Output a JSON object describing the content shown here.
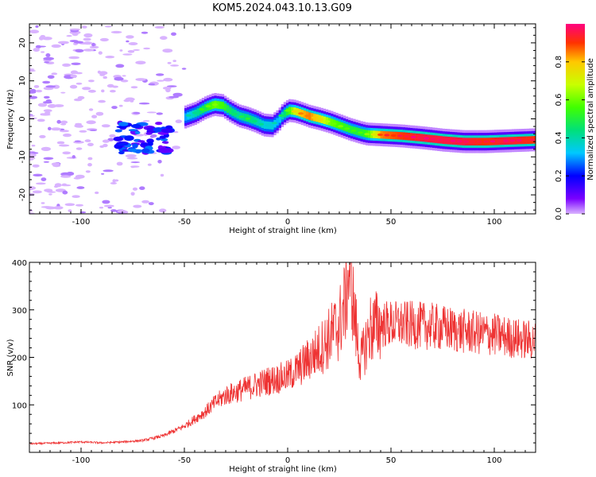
{
  "title": "KOM5.2024.043.10.13.G09",
  "chart_data": [
    {
      "type": "heatmap",
      "xlabel": "Height of straight line (km)",
      "ylabel": "Frequency (Hz)",
      "xlim": [
        -125,
        120
      ],
      "ylim": [
        -25,
        25
      ],
      "x_ticks": [
        -100,
        -50,
        0,
        50,
        100
      ],
      "y_ticks": [
        -20,
        -10,
        0,
        10,
        20
      ],
      "colorbar": {
        "label": "Normalized spectral amplitude",
        "range": [
          0,
          1
        ],
        "ticks": [
          0.0,
          0.2,
          0.4,
          0.6,
          0.8
        ],
        "colors": [
          "#d9b3ff",
          "#7a00ff",
          "#0000ff",
          "#00c8ff",
          "#00e07a",
          "#40ff00",
          "#c8ff00",
          "#ffc800",
          "#ff3300",
          "#ff0080"
        ]
      },
      "ridge": {
        "description_points_x": [
          -50,
          -45,
          -40,
          -36,
          -32,
          -28,
          -24,
          -20,
          -16,
          -12,
          -8,
          -5,
          -3,
          0,
          3,
          6,
          10,
          15,
          20,
          25,
          30,
          35,
          38,
          45,
          55,
          65,
          75,
          85,
          95,
          105,
          120
        ],
        "frequency_hz": [
          0.5,
          1.5,
          3.0,
          3.8,
          3.5,
          2.0,
          0.8,
          0.2,
          -0.6,
          -1.6,
          -1.8,
          -0.5,
          1.0,
          2.2,
          2.0,
          1.5,
          0.7,
          0.0,
          -0.8,
          -1.8,
          -2.8,
          -3.6,
          -4.0,
          -4.2,
          -4.5,
          -5.0,
          -5.6,
          -6.0,
          -6.0,
          -5.8,
          -5.5
        ],
        "amplitude": [
          0.3,
          0.4,
          0.5,
          0.6,
          0.55,
          0.45,
          0.4,
          0.45,
          0.4,
          0.35,
          0.35,
          0.3,
          0.4,
          0.55,
          0.7,
          0.8,
          0.85,
          0.75,
          0.6,
          0.55,
          0.5,
          0.5,
          0.55,
          0.85,
          0.9,
          0.95,
          0.95,
          0.95,
          0.9,
          0.95,
          0.9
        ]
      }
    },
    {
      "type": "line",
      "xlabel": "Height of straight line (km)",
      "ylabel": "SNR (v/v)",
      "xlim": [
        -125,
        120
      ],
      "ylim": [
        0,
        400
      ],
      "x_ticks": [
        -100,
        -50,
        0,
        50,
        100
      ],
      "y_ticks": [
        100,
        200,
        300,
        400
      ],
      "series": [
        {
          "color": "#ee3333",
          "x": [
            -125,
            -110,
            -100,
            -90,
            -80,
            -70,
            -60,
            -50,
            -40,
            -35,
            -30,
            -20,
            -10,
            0,
            5,
            10,
            15,
            20,
            25,
            28,
            30,
            32,
            35,
            38,
            40,
            45,
            50,
            60,
            70,
            80,
            90,
            100,
            110,
            120
          ],
          "y": [
            18,
            20,
            22,
            20,
            22,
            25,
            35,
            55,
            85,
            105,
            120,
            135,
            150,
            160,
            175,
            195,
            215,
            240,
            270,
            320,
            395,
            300,
            190,
            230,
            260,
            270,
            270,
            268,
            265,
            258,
            252,
            248,
            240,
            235
          ]
        }
      ]
    }
  ]
}
